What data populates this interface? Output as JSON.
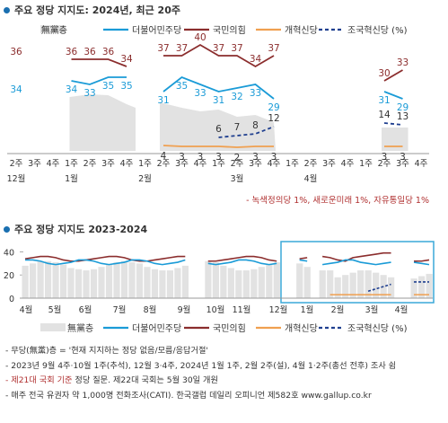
{
  "chart1_title": "주요 정당 지지도: 2024년, 최근 20주",
  "chart2_title": "주요 정당 지지도 2023-2024",
  "legend": {
    "none": "無黨층",
    "dp": "더불어민주당",
    "ppp": "국민의힘",
    "reform": "개혁신당",
    "rebuild": "조국혁신당 (%)"
  },
  "minor_note": "- 녹색정의당 1%, 새로운미래 1%, 자유통일당 1%",
  "notes": [
    "- 무당(無黨)층 = '현재 지지하는 정당 없음/모름/응답거절'",
    "- 2023년 9월 4주·10월 1주(추석), 12월 3·4주, 2024년 1월 1주, 2월 2주(설), 4월 1·2주(총선 전후) 조사 쉼"
  ],
  "note_red": "- 제21대 국회 기준",
  "note_red_rest": " 정당 질문. 제22대 국회는 5월 30일 개원",
  "note_last": "- 매주 전국 유권자 약 1,000명 전화조사(CATI). 한국갤럽 데일리 오피니언 제582호 www.gallup.co.kr",
  "colors": {
    "none": "#e2e2e2",
    "dp": "#1a9bd7",
    "ppp": "#8b2d2d",
    "reform": "#f0a050",
    "rebuild": "#1f3f8f",
    "accent": "#1a6fb0",
    "box": "#3aa8d8"
  },
  "chart_data": [
    {
      "type": "line",
      "title": "주요 정당 지지도: 2024년, 최근 20주",
      "x": [
        "2주",
        "3주",
        "4주",
        "1주",
        "2주",
        "3주",
        "4주",
        "1주",
        "2주",
        "3주",
        "4주",
        "1주",
        "2주",
        "3주",
        "4주",
        "1주",
        "2주",
        "3주",
        "4주",
        "1주",
        "2주",
        "3주",
        "4주"
      ],
      "month_labels": [
        {
          "label": "12월",
          "at": 0
        },
        {
          "label": "1월",
          "at": 3
        },
        {
          "label": "2월",
          "at": 7
        },
        {
          "label": "3월",
          "at": 12
        },
        {
          "label": "4월",
          "at": 16
        }
      ],
      "series": [
        {
          "name": "무당층",
          "values": [
            null,
            null,
            null,
            null,
            null,
            null,
            null,
            null,
            null,
            null,
            null,
            null,
            null,
            null,
            null,
            null,
            null,
            null,
            null,
            null,
            null,
            null,
            null
          ]
        },
        {
          "name": "더불어민주당",
          "values": [
            34,
            null,
            null,
            34,
            33,
            35,
            35,
            null,
            31,
            35,
            33,
            31,
            32,
            33,
            29,
            null,
            null,
            null,
            null,
            null,
            31,
            29,
            null
          ],
          "labels": [
            34,
            null,
            null,
            34,
            33,
            35,
            35,
            null,
            31,
            35,
            33,
            31,
            32,
            33,
            29,
            null,
            null,
            null,
            null,
            null,
            31,
            29,
            null
          ]
        },
        {
          "name": "국민의힘",
          "values": [
            36,
            null,
            null,
            36,
            36,
            36,
            34,
            null,
            37,
            37,
            40,
            37,
            37,
            34,
            37,
            null,
            null,
            null,
            null,
            null,
            30,
            33,
            null
          ]
        },
        {
          "name": "개혁신당",
          "values": [
            null,
            null,
            null,
            null,
            null,
            null,
            null,
            null,
            4,
            3,
            3,
            3,
            2,
            3,
            3,
            null,
            null,
            null,
            null,
            null,
            3,
            3,
            null
          ]
        },
        {
          "name": "조국혁신당",
          "values": [
            null,
            null,
            null,
            null,
            null,
            null,
            null,
            null,
            null,
            null,
            null,
            6,
            7,
            8,
            12,
            null,
            null,
            null,
            null,
            null,
            14,
            13,
            null
          ]
        }
      ]
    },
    {
      "type": "line",
      "title": "주요 정당 지지도 2023-2024",
      "x": [
        "4월",
        "5월",
        "6월",
        "7월",
        "8월",
        "9월",
        "10월",
        "11월",
        "12월",
        "1월",
        "2월",
        "3월",
        "4월"
      ],
      "yticks": [
        0,
        20,
        40
      ],
      "ylim": [
        0,
        45
      ],
      "series": [
        {
          "name": "무당층"
        },
        {
          "name": "더불어민주당"
        },
        {
          "name": "국민의힘"
        },
        {
          "name": "개혁신당"
        },
        {
          "name": "조국혁신당"
        }
      ]
    }
  ]
}
